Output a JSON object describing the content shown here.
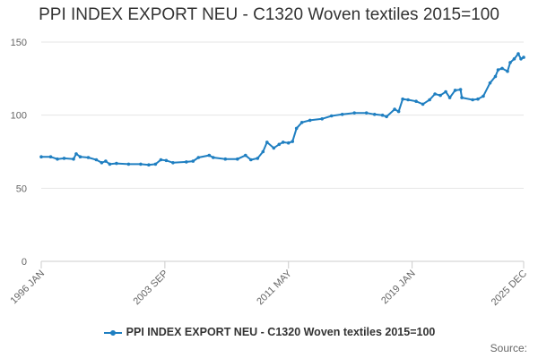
{
  "chart_data": {
    "type": "line",
    "title": "PPI INDEX EXPORT NEU - C1320 Woven textiles 2015=100",
    "xlabel": "",
    "ylabel": "",
    "x_ticks": [
      "1996 JAN",
      "2003 SEP",
      "2011 MAY",
      "2019 JAN",
      "2025 DEC"
    ],
    "x_range": [
      "1996-01",
      "2025-12"
    ],
    "y_ticks": [
      0,
      50,
      100,
      150
    ],
    "ylim": [
      0,
      150
    ],
    "grid": "horizontal",
    "legend": "bottom",
    "series": [
      {
        "name": "PPI INDEX EXPORT NEU - C1320 Woven textiles 2015=100",
        "color": "#1f7fc1",
        "points": [
          [
            "1996-01",
            71.5
          ],
          [
            "1996-08",
            71.5
          ],
          [
            "1997-01",
            70.0
          ],
          [
            "1997-06",
            70.5
          ],
          [
            "1998-01",
            70.0
          ],
          [
            "1998-03",
            73.5
          ],
          [
            "1998-06",
            71.5
          ],
          [
            "1998-12",
            71.0
          ],
          [
            "1999-06",
            69.5
          ],
          [
            "1999-10",
            67.5
          ],
          [
            "2000-01",
            68.5
          ],
          [
            "2000-04",
            66.5
          ],
          [
            "2000-09",
            67.0
          ],
          [
            "2001-06",
            66.5
          ],
          [
            "2002-03",
            66.5
          ],
          [
            "2002-09",
            66.0
          ],
          [
            "2003-02",
            66.5
          ],
          [
            "2003-06",
            69.5
          ],
          [
            "2003-10",
            69.0
          ],
          [
            "2004-03",
            67.5
          ],
          [
            "2005-01",
            68.0
          ],
          [
            "2005-06",
            68.5
          ],
          [
            "2005-10",
            71.0
          ],
          [
            "2006-06",
            72.5
          ],
          [
            "2006-09",
            71.0
          ],
          [
            "2007-06",
            70.0
          ],
          [
            "2008-03",
            70.0
          ],
          [
            "2008-09",
            72.5
          ],
          [
            "2009-01",
            69.5
          ],
          [
            "2009-06",
            70.5
          ],
          [
            "2009-10",
            75.0
          ],
          [
            "2010-01",
            81.5
          ],
          [
            "2010-06",
            77.5
          ],
          [
            "2010-10",
            80.0
          ],
          [
            "2011-01",
            81.5
          ],
          [
            "2011-05",
            81.0
          ],
          [
            "2011-08",
            82.0
          ],
          [
            "2011-11",
            91.0
          ],
          [
            "2012-03",
            95.0
          ],
          [
            "2012-09",
            96.5
          ],
          [
            "2013-06",
            97.5
          ],
          [
            "2014-01",
            99.5
          ],
          [
            "2014-09",
            100.5
          ],
          [
            "2015-06",
            101.5
          ],
          [
            "2016-03",
            101.5
          ],
          [
            "2016-09",
            100.5
          ],
          [
            "2017-03",
            100.0
          ],
          [
            "2017-06",
            99.0
          ],
          [
            "2017-12",
            104.0
          ],
          [
            "2018-03",
            102.5
          ],
          [
            "2018-06",
            111.0
          ],
          [
            "2018-10",
            110.5
          ],
          [
            "2019-04",
            109.5
          ],
          [
            "2019-09",
            107.5
          ],
          [
            "2020-02",
            110.5
          ],
          [
            "2020-06",
            114.5
          ],
          [
            "2020-10",
            113.5
          ],
          [
            "2021-02",
            116.0
          ],
          [
            "2021-05",
            112.0
          ],
          [
            "2021-09",
            117.0
          ],
          [
            "2022-01",
            117.5
          ],
          [
            "2022-02",
            112.0
          ],
          [
            "2022-10",
            110.5
          ],
          [
            "2023-02",
            111.0
          ],
          [
            "2023-06",
            113.0
          ],
          [
            "2023-11",
            122.0
          ],
          [
            "2024-03",
            126.5
          ],
          [
            "2024-05",
            131.0
          ],
          [
            "2024-08",
            132.0
          ],
          [
            "2024-12",
            130.0
          ],
          [
            "2025-02",
            136.0
          ],
          [
            "2025-05",
            138.5
          ],
          [
            "2025-08",
            142.0
          ],
          [
            "2025-10",
            138.5
          ],
          [
            "2025-12",
            139.5
          ]
        ]
      }
    ]
  },
  "source_label": "Source:"
}
